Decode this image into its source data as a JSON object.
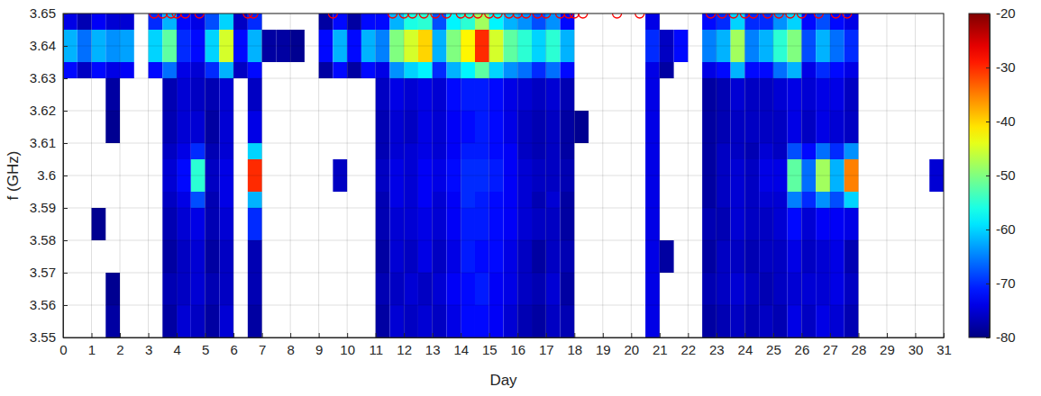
{
  "chart_data": {
    "type": "heatmap",
    "x_label": "Day",
    "y_label": "f (GHz)",
    "xlim": [
      0,
      31
    ],
    "ylim": [
      3.55,
      3.65
    ],
    "xticks": [
      0,
      1,
      2,
      3,
      4,
      5,
      6,
      7,
      8,
      9,
      10,
      11,
      12,
      13,
      14,
      15,
      16,
      17,
      18,
      19,
      20,
      21,
      22,
      23,
      24,
      25,
      26,
      27,
      28,
      29,
      30,
      31
    ],
    "yticks": [
      3.55,
      3.56,
      3.57,
      3.58,
      3.59,
      3.6,
      3.61,
      3.62,
      3.63,
      3.64,
      3.65
    ],
    "grid": true,
    "x_edges": [
      0,
      0.5,
      1,
      1.5,
      2,
      2.5,
      3,
      3.5,
      4,
      4.5,
      5,
      5.5,
      6,
      6.5,
      7,
      7.5,
      8,
      8.5,
      9,
      9.5,
      10,
      10.5,
      11,
      11.5,
      12,
      12.5,
      13,
      13.5,
      14,
      14.5,
      15,
      15.5,
      16,
      16.5,
      17,
      17.5,
      18,
      18.5,
      19,
      19.5,
      20,
      20.5,
      21,
      21.5,
      22,
      22.5,
      23,
      23.5,
      24,
      24.5,
      25,
      25.5,
      26,
      26.5,
      27,
      27.5,
      28,
      28.5,
      29,
      29.5,
      30,
      30.5,
      31
    ],
    "y_edges": [
      3.55,
      3.56,
      3.57,
      3.58,
      3.59,
      3.595,
      3.605,
      3.61,
      3.62,
      3.63,
      3.635,
      3.645,
      3.65
    ],
    "z": [
      [
        null,
        null,
        null,
        -78,
        null,
        null,
        null,
        -78,
        -75,
        -76,
        -78,
        -75,
        null,
        -78,
        null,
        null,
        null,
        null,
        null,
        null,
        null,
        null,
        -78,
        -75,
        -76,
        -75,
        -76,
        -74,
        -72,
        -72,
        -73,
        -75,
        -77,
        -78,
        -76,
        -77,
        null,
        null,
        null,
        null,
        null,
        -74,
        null,
        null,
        null,
        -78,
        -77,
        -76,
        -77,
        -76,
        -77,
        -74,
        -76,
        -74,
        -75,
        -77,
        null,
        null,
        null,
        null,
        null,
        null
      ],
      [
        null,
        null,
        null,
        -79,
        null,
        null,
        null,
        -77,
        -76,
        -75,
        -77,
        -76,
        null,
        -77,
        null,
        null,
        null,
        null,
        null,
        null,
        null,
        null,
        -77,
        -76,
        -75,
        -76,
        -75,
        -73,
        -72,
        -71,
        -73,
        -74,
        -76,
        -77,
        -75,
        -78,
        null,
        null,
        null,
        null,
        null,
        -74,
        null,
        null,
        null,
        -77,
        -76,
        -75,
        -76,
        -77,
        -76,
        -75,
        -75,
        -75,
        -74,
        -76,
        null,
        null,
        null,
        null,
        null,
        null
      ],
      [
        null,
        null,
        null,
        null,
        null,
        null,
        null,
        -78,
        -76,
        -75,
        -78,
        -76,
        null,
        -77,
        null,
        null,
        null,
        null,
        null,
        null,
        null,
        null,
        -78,
        -75,
        -76,
        -74,
        -76,
        -74,
        -71,
        -72,
        -72,
        -74,
        -76,
        -78,
        -76,
        -77,
        null,
        null,
        null,
        null,
        null,
        -74,
        -78,
        null,
        null,
        -78,
        -76,
        -76,
        -77,
        -76,
        -76,
        -74,
        -76,
        -75,
        -74,
        -77,
        null,
        null,
        null,
        null,
        null,
        null
      ],
      [
        null,
        null,
        -79,
        null,
        null,
        null,
        null,
        -77,
        -75,
        -74,
        -77,
        -75,
        null,
        -70,
        null,
        null,
        null,
        null,
        null,
        null,
        null,
        null,
        -77,
        -75,
        -75,
        -74,
        -75,
        -73,
        -71,
        -71,
        -72,
        -73,
        -75,
        -76,
        -76,
        -78,
        null,
        null,
        null,
        null,
        null,
        -74,
        null,
        null,
        null,
        -77,
        -77,
        -75,
        -76,
        -76,
        -75,
        -72,
        -75,
        -73,
        -73,
        -74,
        null,
        null,
        null,
        null,
        null,
        null
      ],
      [
        null,
        null,
        null,
        null,
        null,
        null,
        null,
        -76,
        -74,
        -68,
        -77,
        -74,
        null,
        -62,
        null,
        null,
        null,
        null,
        null,
        null,
        null,
        null,
        -77,
        -74,
        -75,
        -73,
        -75,
        -73,
        -70,
        -71,
        -72,
        -73,
        -75,
        -77,
        -75,
        -78,
        null,
        null,
        null,
        null,
        null,
        -74,
        null,
        null,
        null,
        -78,
        -76,
        -75,
        -76,
        -75,
        -75,
        -65,
        -70,
        -64,
        -68,
        -60,
        null,
        null,
        null,
        null,
        null,
        null
      ],
      [
        null,
        null,
        null,
        null,
        null,
        null,
        null,
        -75,
        -72,
        -55,
        -76,
        -74,
        null,
        -30,
        null,
        null,
        null,
        null,
        null,
        -76,
        null,
        null,
        -76,
        -74,
        -75,
        -73,
        -74,
        -72,
        -70,
        -70,
        -71,
        -73,
        -75,
        -76,
        -76,
        -77,
        null,
        null,
        null,
        null,
        null,
        -74,
        null,
        null,
        null,
        -78,
        -76,
        -75,
        -76,
        -74,
        -74,
        -52,
        -66,
        -48,
        -62,
        -35,
        null,
        null,
        null,
        null,
        null,
        -75
      ],
      [
        null,
        null,
        null,
        null,
        null,
        null,
        null,
        -76,
        -74,
        -70,
        -77,
        -75,
        null,
        -60,
        null,
        null,
        null,
        null,
        null,
        null,
        null,
        null,
        -77,
        -75,
        -75,
        -74,
        -75,
        -73,
        -71,
        -71,
        -72,
        -73,
        -76,
        -77,
        -76,
        -78,
        null,
        null,
        null,
        null,
        null,
        -74,
        null,
        null,
        null,
        -78,
        -76,
        -76,
        -77,
        -75,
        -76,
        -68,
        -72,
        -66,
        -70,
        -64,
        null,
        null,
        null,
        null,
        null,
        null
      ],
      [
        null,
        null,
        null,
        -79,
        null,
        null,
        null,
        -77,
        -75,
        -75,
        -78,
        -75,
        null,
        -74,
        null,
        null,
        null,
        null,
        null,
        null,
        null,
        null,
        -77,
        -75,
        -76,
        -74,
        -75,
        -73,
        -72,
        -71,
        -72,
        -74,
        -76,
        -77,
        -76,
        -78,
        -79,
        null,
        null,
        null,
        null,
        -74,
        null,
        null,
        null,
        -78,
        -77,
        -76,
        -76,
        -76,
        -76,
        -74,
        -76,
        -74,
        -75,
        -76,
        null,
        null,
        null,
        null,
        null,
        null
      ],
      [
        null,
        null,
        null,
        -78,
        null,
        null,
        null,
        -77,
        -75,
        -76,
        -77,
        -75,
        null,
        -76,
        null,
        null,
        null,
        null,
        null,
        null,
        null,
        null,
        -76,
        -74,
        -75,
        -74,
        -75,
        -72,
        -71,
        -71,
        -72,
        -74,
        -75,
        -76,
        -75,
        -77,
        null,
        null,
        null,
        null,
        null,
        -74,
        null,
        null,
        null,
        -78,
        -77,
        -75,
        -76,
        -76,
        -75,
        -74,
        -75,
        -74,
        -74,
        -76,
        null,
        null,
        null,
        null,
        null,
        null
      ],
      [
        -72,
        -76,
        -72,
        -74,
        -73,
        null,
        -72,
        -66,
        -74,
        -75,
        -70,
        -62,
        -76,
        -72,
        null,
        null,
        null,
        null,
        -78,
        -72,
        -78,
        -72,
        -74,
        -64,
        -60,
        -58,
        -70,
        -62,
        -58,
        -52,
        -60,
        -64,
        -66,
        -70,
        -66,
        -72,
        null,
        null,
        null,
        null,
        null,
        -74,
        -78,
        null,
        null,
        -74,
        -72,
        -62,
        -72,
        -72,
        -66,
        -62,
        -74,
        -70,
        -72,
        -74,
        null,
        null,
        null,
        null,
        null,
        null
      ],
      [
        -62,
        -66,
        -62,
        -64,
        -63,
        null,
        -60,
        -52,
        -70,
        -72,
        -60,
        -45,
        -72,
        -62,
        -78,
        -78,
        -79,
        null,
        -72,
        -62,
        -72,
        -62,
        -65,
        -50,
        -45,
        -40,
        -62,
        -50,
        -42,
        -30,
        -45,
        -52,
        -55,
        -60,
        -55,
        -62,
        null,
        null,
        null,
        null,
        null,
        -70,
        -76,
        -72,
        null,
        -65,
        -62,
        -48,
        -65,
        -62,
        -55,
        -50,
        -68,
        -62,
        -66,
        -70,
        null,
        null,
        null,
        null,
        null,
        null
      ],
      [
        -74,
        -77,
        -73,
        -75,
        -75,
        null,
        -70,
        -62,
        -72,
        -74,
        -68,
        -60,
        -76,
        -70,
        null,
        null,
        null,
        null,
        -78,
        -72,
        -78,
        -72,
        -72,
        -62,
        -56,
        -55,
        -68,
        -58,
        -55,
        -48,
        -58,
        -62,
        -64,
        -68,
        -64,
        -72,
        null,
        null,
        null,
        null,
        null,
        -74,
        null,
        null,
        null,
        -72,
        -70,
        -60,
        -70,
        -70,
        -64,
        -60,
        -72,
        -68,
        -72,
        -74,
        null,
        null,
        null,
        null,
        null,
        null
      ]
    ],
    "colorbar": {
      "range": [
        -80,
        -20
      ],
      "ticks": [
        -80,
        -70,
        -60,
        -50,
        -40,
        -30,
        -20
      ]
    },
    "markers": {
      "x": [
        3.2,
        3.5,
        3.8,
        4.0,
        4.3,
        4.8,
        6.5,
        6.7,
        9.5,
        11.6,
        12.0,
        12.3,
        12.7,
        13.1,
        13.5,
        14.0,
        14.3,
        14.6,
        15.0,
        15.3,
        15.7,
        16.0,
        16.3,
        16.7,
        17.0,
        17.5,
        17.8,
        18.0,
        18.3,
        19.5,
        20.3,
        22.8,
        23.2,
        23.6,
        24.0,
        24.3,
        24.8,
        25.2,
        25.6,
        26.0,
        26.6,
        27.2,
        27.6
      ],
      "y": [
        3.65,
        3.65,
        3.65,
        3.65,
        3.65,
        3.65,
        3.65,
        3.65,
        3.65,
        3.65,
        3.65,
        3.65,
        3.65,
        3.65,
        3.65,
        3.65,
        3.65,
        3.65,
        3.65,
        3.65,
        3.65,
        3.65,
        3.65,
        3.65,
        3.65,
        3.65,
        3.65,
        3.65,
        3.65,
        3.65,
        3.65,
        3.65,
        3.65,
        3.65,
        3.65,
        3.65,
        3.65,
        3.65,
        3.65,
        3.65,
        3.65,
        3.65,
        3.65
      ],
      "color": "#ff0000",
      "marker": "circle"
    }
  }
}
